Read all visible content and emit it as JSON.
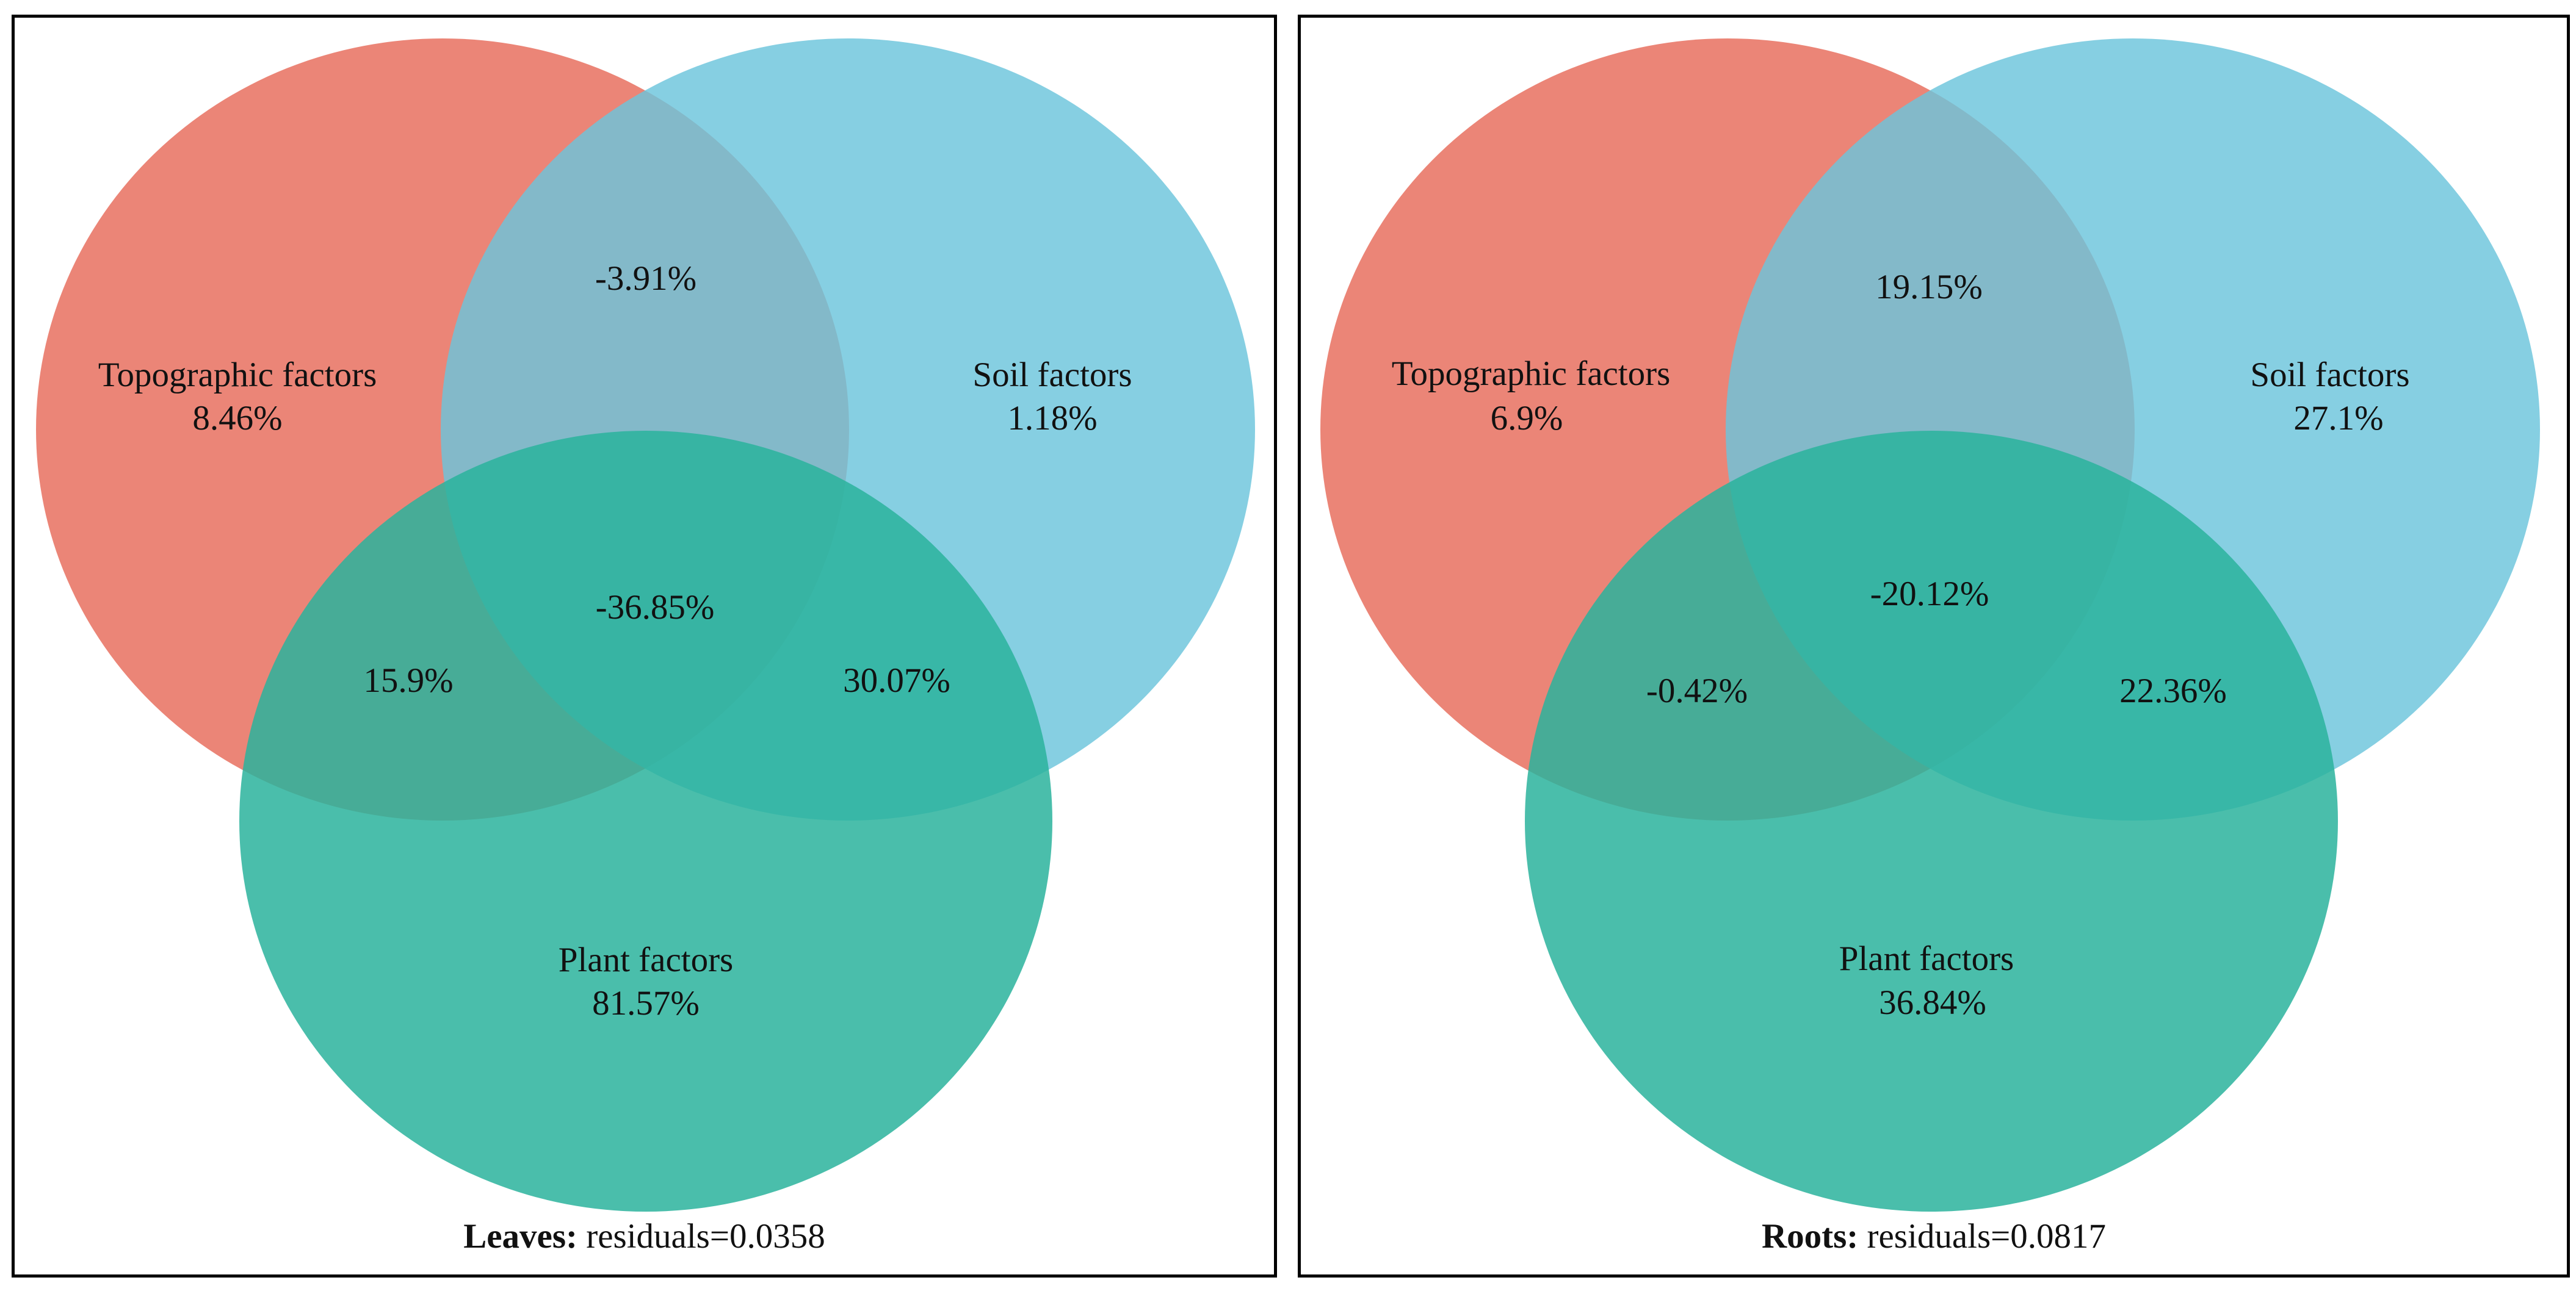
{
  "colors": {
    "topographic": "#e8705f",
    "soil": "#6bc5dc",
    "plant": "#2ab39c"
  },
  "panels": [
    {
      "caption": {
        "label": "Leaves:",
        "text": "residuals=0.0358"
      },
      "sets": {
        "topographic": {
          "label": "Topographic factors",
          "value": "8.46%"
        },
        "soil": {
          "label": "Soil factors",
          "value": "1.18%"
        },
        "plant": {
          "label": "Plant factors",
          "value": "81.57%"
        }
      },
      "overlaps": {
        "topo_soil": "-3.91%",
        "topo_plant": "15.9%",
        "soil_plant": "30.07%",
        "all": "-36.85%"
      }
    },
    {
      "caption": {
        "label": "Roots:",
        "text": "residuals=0.0817"
      },
      "sets": {
        "topographic": {
          "label": "Topographic factors",
          "value": "6.9%"
        },
        "soil": {
          "label": "Soil factors",
          "value": "27.1%"
        },
        "plant": {
          "label": "Plant factors",
          "value": "36.84%"
        }
      },
      "overlaps": {
        "topo_soil": "19.15%",
        "topo_plant": "-0.42%",
        "soil_plant": "22.36%",
        "all": "-20.12%"
      }
    }
  ]
}
